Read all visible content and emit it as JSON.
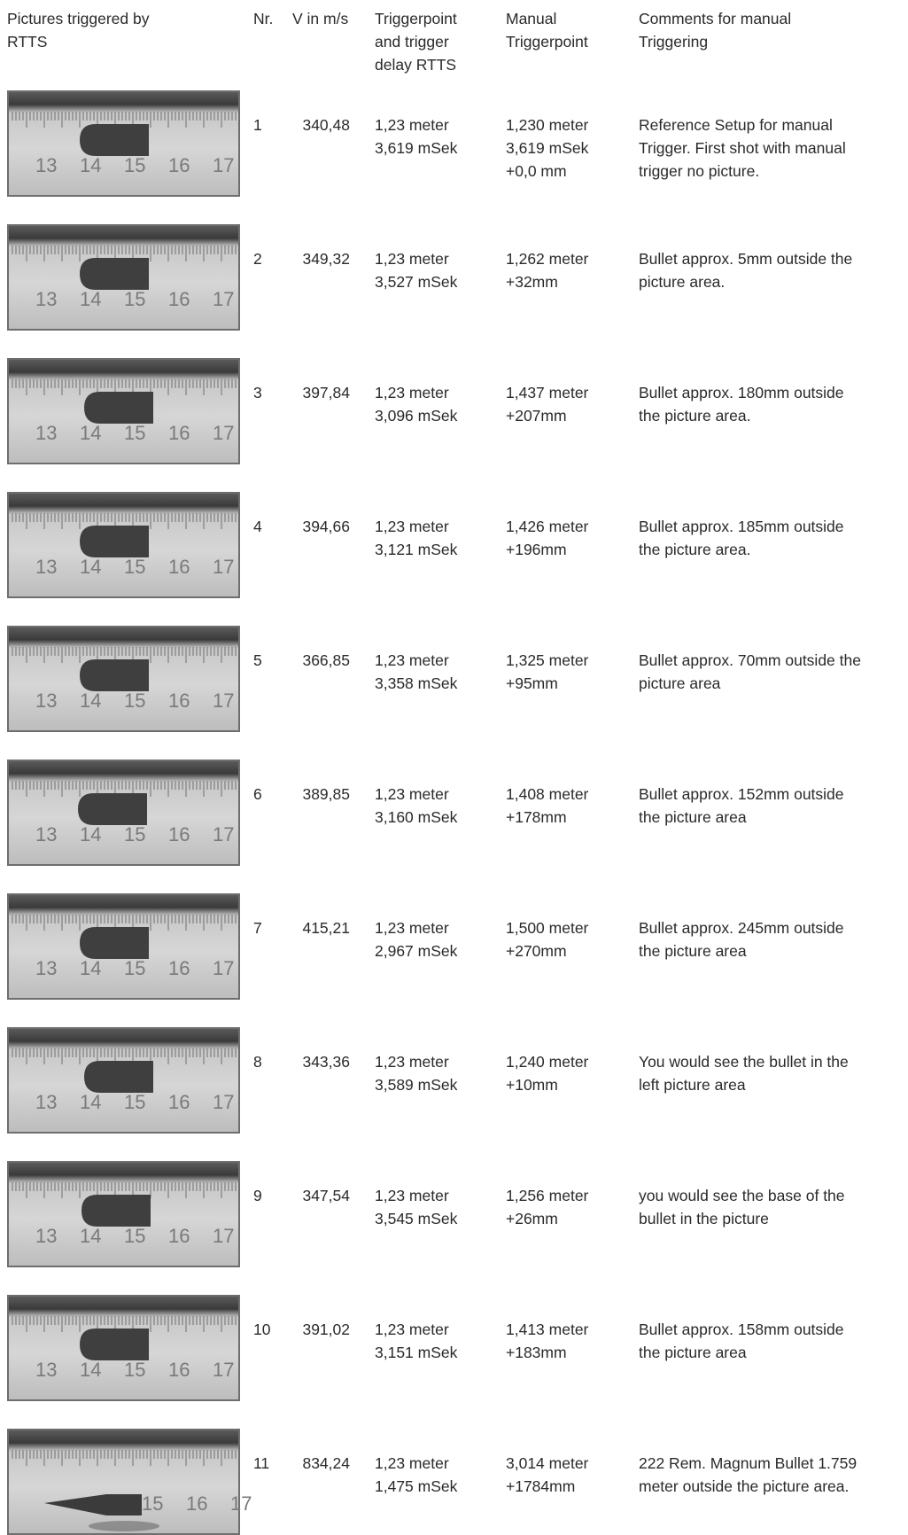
{
  "headers": {
    "pictures": "Pictures triggered by\nRTTS",
    "nr": "Nr.",
    "v": "V in m/s",
    "triggerpoint": "Triggerpoint\nand trigger\ndelay RTTS",
    "manual": "Manual\nTriggerpoint",
    "comments": "Comments for manual\nTriggering"
  },
  "rows": [
    {
      "nr": "1",
      "v": "340,48",
      "trig": "1,23 meter\n3,619 mSek",
      "manual": "1,230 meter\n3,619 mSek\n+0,0 mm",
      "comment": "Reference Setup for manual\nTrigger. First shot with manual\ntrigger no picture.",
      "scale": [
        "13",
        "14",
        "15",
        "16",
        "17"
      ]
    },
    {
      "nr": "2",
      "v": "349,32",
      "trig": "1,23 meter\n3,527 mSek",
      "manual": "1,262 meter\n+32mm",
      "comment": "Bullet approx. 5mm outside the\npicture area.",
      "scale": [
        "13",
        "14",
        "15",
        "16",
        "17"
      ]
    },
    {
      "nr": "3",
      "v": "397,84",
      "trig": "1,23 meter\n3,096 mSek",
      "manual": "1,437 meter\n+207mm",
      "comment": "Bullet approx. 180mm outside\nthe picture area.",
      "scale": [
        "13",
        "14",
        "15",
        "16",
        "17"
      ]
    },
    {
      "nr": "4",
      "v": "394,66",
      "trig": "1,23 meter\n3,121 mSek",
      "manual": "1,426 meter\n+196mm",
      "comment": "Bullet approx. 185mm outside\nthe picture area.",
      "scale": [
        "13",
        "14",
        "15",
        "16",
        "17"
      ]
    },
    {
      "nr": "5",
      "v": "366,85",
      "trig": "1,23 meter\n3,358 mSek",
      "manual": "1,325 meter\n+95mm",
      "comment": "Bullet approx. 70mm outside the\npicture area",
      "scale": [
        "13",
        "14",
        "15",
        "16",
        "17"
      ]
    },
    {
      "nr": "6",
      "v": "389,85",
      "trig": "1,23 meter\n3,160 mSek",
      "manual": "1,408 meter\n+178mm",
      "comment": "Bullet approx. 152mm outside\nthe picture area",
      "scale": [
        "13",
        "14",
        "15",
        "16",
        "17"
      ]
    },
    {
      "nr": "7",
      "v": "415,21",
      "trig": "1,23 meter\n2,967 mSek",
      "manual": "1,500 meter\n+270mm",
      "comment": "Bullet approx. 245mm outside\nthe picture area",
      "scale": [
        "13",
        "14",
        "15",
        "16",
        "17"
      ]
    },
    {
      "nr": "8",
      "v": "343,36",
      "trig": "1,23 meter\n3,589 mSek",
      "manual": "1,240 meter\n+10mm",
      "comment": "You would see the bullet in the\nleft picture area",
      "scale": [
        "13",
        "14",
        "15",
        "16",
        "17"
      ]
    },
    {
      "nr": "9",
      "v": "347,54",
      "trig": "1,23 meter\n3,545 mSek",
      "manual": "1,256 meter\n+26mm",
      "comment": "you would see the base of the\nbullet in the picture",
      "scale": [
        "13",
        "14",
        "15",
        "16",
        "17"
      ]
    },
    {
      "nr": "10",
      "v": "391,02",
      "trig": "1,23 meter\n3,151 mSek",
      "manual": "1,413 meter\n+183mm",
      "comment": "Bullet approx. 158mm outside\nthe picture area",
      "scale": [
        "13",
        "14",
        "15",
        "16",
        "17"
      ]
    },
    {
      "nr": "11",
      "v": "834,24",
      "trig": "1,23 meter\n1,475 mSek",
      "manual": "3,014 meter\n+1784mm",
      "comment": "222 Rem. Magnum Bullet 1.759\nmeter outside the picture area.",
      "scale": [
        "15",
        "16",
        "17"
      ]
    }
  ]
}
